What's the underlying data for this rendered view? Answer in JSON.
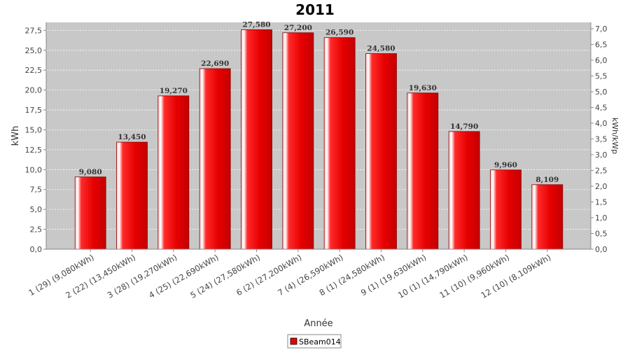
{
  "chart_data": {
    "type": "bar",
    "title": "2011",
    "xlabel": "Année",
    "ylabel": "kWh",
    "y2label": "kWh/kWp",
    "categories": [
      "1 (29)  (9,080kWh)",
      "2 (22)  (13,450kWh)",
      "3 (28)  (19,270kWh)",
      "4 (25)  (22,690kWh)",
      "5 (24)  (27,580kWh)",
      "6 (2)  (27,200kWh)",
      "7 (4)  (26,590kWh)",
      "8 (1)  (24,580kWh)",
      "9 (1)  (19,630kWh)",
      "10 (1)  (14,790kWh)",
      "11 (10)  (9,960kWh)",
      "12 (10)  (8,109kWh)"
    ],
    "series": [
      {
        "name": "SBeam014",
        "values": [
          9.08,
          13.45,
          19.27,
          22.69,
          27.58,
          27.2,
          26.59,
          24.58,
          19.63,
          14.79,
          9.96,
          8.109
        ],
        "data_labels": [
          "9,080",
          "13,450",
          "19,270",
          "22,690",
          "27,580",
          "27,200",
          "26,590",
          "24,580",
          "19,630",
          "14,790",
          "9,960",
          "8,109"
        ]
      }
    ],
    "ylim": [
      0,
      28.5
    ],
    "y_ticks": [
      "0,0",
      "2,5",
      "5,0",
      "7,5",
      "10,0",
      "12,5",
      "15,0",
      "17,5",
      "20,0",
      "22,5",
      "25,0",
      "27,5"
    ],
    "y2lim": [
      0,
      7.2
    ],
    "y2_ticks": [
      "0,0",
      "0,5",
      "1,0",
      "1,5",
      "2,0",
      "2,5",
      "3,0",
      "3,5",
      "4,0",
      "4,5",
      "5,0",
      "5,5",
      "6,0",
      "6,5",
      "7,0"
    ],
    "grid": true,
    "legend": "bottom-center",
    "colors": {
      "bar": "#e60000",
      "plot_bg": "#c8c8c8",
      "grid": "#ffffff"
    }
  }
}
